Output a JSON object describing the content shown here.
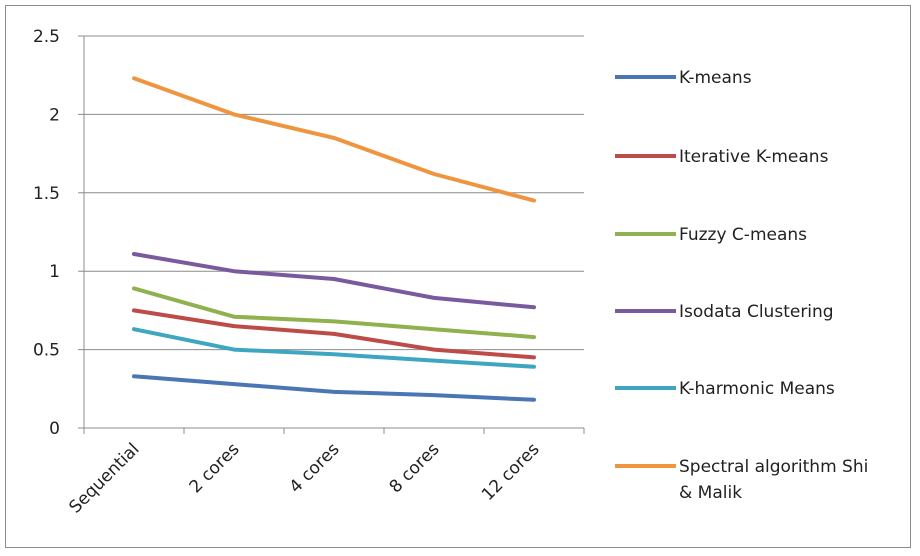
{
  "chart_data": {
    "type": "line",
    "categories": [
      "Sequential",
      "2 cores",
      "4 cores",
      "8 cores",
      "12 cores"
    ],
    "ylim": [
      0,
      2.5
    ],
    "yticks": [
      "0",
      "0.5",
      "1",
      "1.5",
      "2",
      "2.5"
    ],
    "grid": true,
    "legend_position": "right",
    "series": [
      {
        "name": "K-means",
        "color": "#4a76b4",
        "values": [
          0.33,
          0.28,
          0.23,
          0.21,
          0.18
        ]
      },
      {
        "name": "Iterative K-means",
        "color": "#bd4b48",
        "values": [
          0.75,
          0.65,
          0.6,
          0.5,
          0.45
        ]
      },
      {
        "name": "Fuzzy C-means",
        "color": "#8fb24f",
        "values": [
          0.89,
          0.71,
          0.68,
          0.63,
          0.58
        ]
      },
      {
        "name": "Isodata Clustering",
        "color": "#7a5a9e",
        "values": [
          1.11,
          1.0,
          0.95,
          0.83,
          0.77
        ]
      },
      {
        "name": "K-harmonic Means",
        "color": "#3ea6c0",
        "values": [
          0.63,
          0.5,
          0.47,
          0.43,
          0.39
        ]
      },
      {
        "name": "Spectral algorithm Shi & Malik",
        "color": "#f0953f",
        "values": [
          2.23,
          2.0,
          1.85,
          1.62,
          1.45
        ]
      }
    ]
  }
}
